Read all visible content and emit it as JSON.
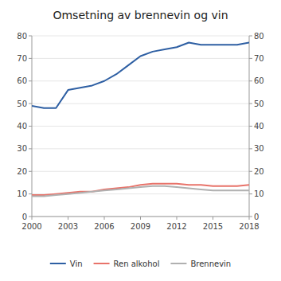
{
  "chart_data": {
    "type": "line",
    "title": "Omsetning av brennevin og vin",
    "x": [
      2000,
      2001,
      2002,
      2003,
      2004,
      2005,
      2006,
      2007,
      2008,
      2009,
      2010,
      2011,
      2012,
      2013,
      2014,
      2015,
      2016,
      2017,
      2018
    ],
    "series": [
      {
        "name": "Vin",
        "color": "#2e5fa3",
        "values": [
          49,
          48,
          48,
          56,
          57,
          58,
          60,
          63,
          67,
          71,
          73,
          74,
          75,
          77,
          76,
          76,
          76,
          76,
          77
        ]
      },
      {
        "name": "Ren alkohol",
        "color": "#e8736a",
        "values": [
          9.5,
          9.5,
          10,
          10.5,
          11,
          11,
          12,
          12.5,
          13,
          14,
          14.5,
          14.5,
          14.5,
          14,
          14,
          13.5,
          13.5,
          13.5,
          14
        ]
      },
      {
        "name": "Brennevin",
        "color": "#b0b0b0",
        "values": [
          9,
          9,
          9.5,
          10,
          10.5,
          11,
          11.5,
          12,
          12.5,
          13,
          13.5,
          13.5,
          13,
          12.5,
          12,
          11.5,
          11.5,
          11.5,
          11.5
        ]
      }
    ],
    "xlim": [
      2000,
      2018
    ],
    "xticks": [
      2000,
      2003,
      2006,
      2009,
      2012,
      2015,
      2018
    ],
    "ylim": [
      0,
      80
    ],
    "yticks": [
      0,
      10,
      20,
      30,
      40,
      50,
      60,
      70,
      80
    ],
    "y2lim": [
      0,
      80
    ],
    "y2ticks": [
      0,
      10,
      20,
      30,
      40,
      50,
      60,
      70,
      80
    ],
    "grid": true,
    "legend": "bottom"
  }
}
